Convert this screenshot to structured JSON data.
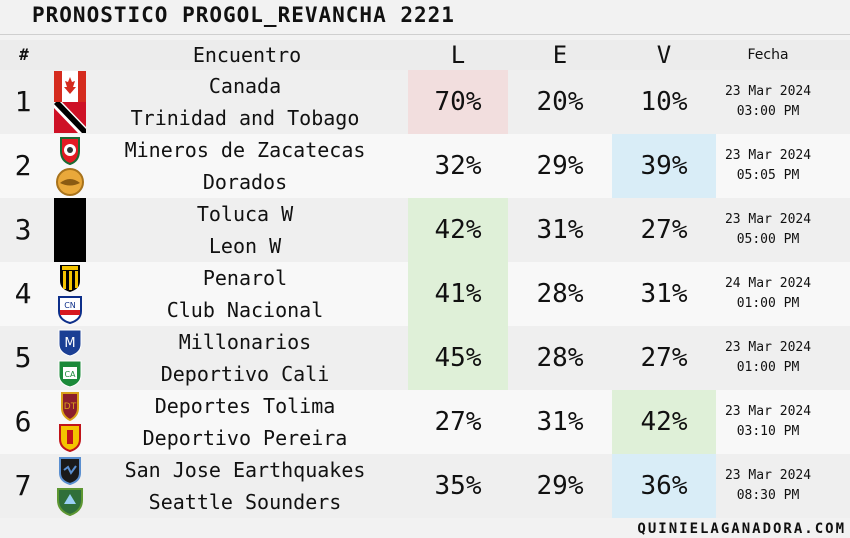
{
  "title": "PRONOSTICO PROGOL_REVANCHA 2221",
  "header": {
    "num": "#",
    "match": "Encuentro",
    "l": "L",
    "e": "E",
    "v": "V",
    "date": "Fecha"
  },
  "colors": {
    "red": "#f2dede",
    "green": "#dff0d8",
    "blue": "#d9edf7"
  },
  "matches": [
    {
      "num": "1",
      "home": "Canada",
      "away": "Trinidad and Tobago",
      "l": "70%",
      "e": "20%",
      "v": "10%",
      "date": "23 Mar 2024",
      "time": "03:00 PM",
      "hl": "l",
      "hl_color": "red",
      "home_logo": "canada-flag-icon",
      "away_logo": "trinidad-flag-icon"
    },
    {
      "num": "2",
      "home": "Mineros de Zacatecas",
      "away": "Dorados",
      "l": "32%",
      "e": "29%",
      "v": "39%",
      "date": "23 Mar 2024",
      "time": "05:05 PM",
      "hl": "v",
      "hl_color": "blue",
      "home_logo": "mineros-crest-icon",
      "away_logo": "dorados-crest-icon"
    },
    {
      "num": "3",
      "home": "Toluca W",
      "away": "Leon W",
      "l": "42%",
      "e": "31%",
      "v": "27%",
      "date": "23 Mar 2024",
      "time": "05:00 PM",
      "hl": "l",
      "hl_color": "green",
      "home_logo": "black-placeholder-logo-icon",
      "away_logo": ""
    },
    {
      "num": "4",
      "home": "Penarol",
      "away": "Club Nacional",
      "l": "41%",
      "e": "28%",
      "v": "31%",
      "date": "24 Mar 2024",
      "time": "01:00 PM",
      "hl": "l",
      "hl_color": "green",
      "home_logo": "penarol-crest-icon",
      "away_logo": "nacional-crest-icon"
    },
    {
      "num": "5",
      "home": "Millonarios",
      "away": "Deportivo Cali",
      "l": "45%",
      "e": "28%",
      "v": "27%",
      "date": "23 Mar 2024",
      "time": "01:00 PM",
      "hl": "l",
      "hl_color": "green",
      "home_logo": "millonarios-crest-icon",
      "away_logo": "cali-crest-icon"
    },
    {
      "num": "6",
      "home": "Deportes Tolima",
      "away": "Deportivo Pereira",
      "l": "27%",
      "e": "31%",
      "v": "42%",
      "date": "23 Mar 2024",
      "time": "03:10 PM",
      "hl": "v",
      "hl_color": "green",
      "home_logo": "tolima-crest-icon",
      "away_logo": "pereira-crest-icon"
    },
    {
      "num": "7",
      "home": "San Jose Earthquakes",
      "away": "Seattle Sounders",
      "l": "35%",
      "e": "29%",
      "v": "36%",
      "date": "23 Mar 2024",
      "time": "08:30 PM",
      "hl": "v",
      "hl_color": "blue",
      "home_logo": "earthquakes-crest-icon",
      "away_logo": "sounders-crest-icon"
    }
  ],
  "footer": "QUINIELAGANADORA.COM"
}
